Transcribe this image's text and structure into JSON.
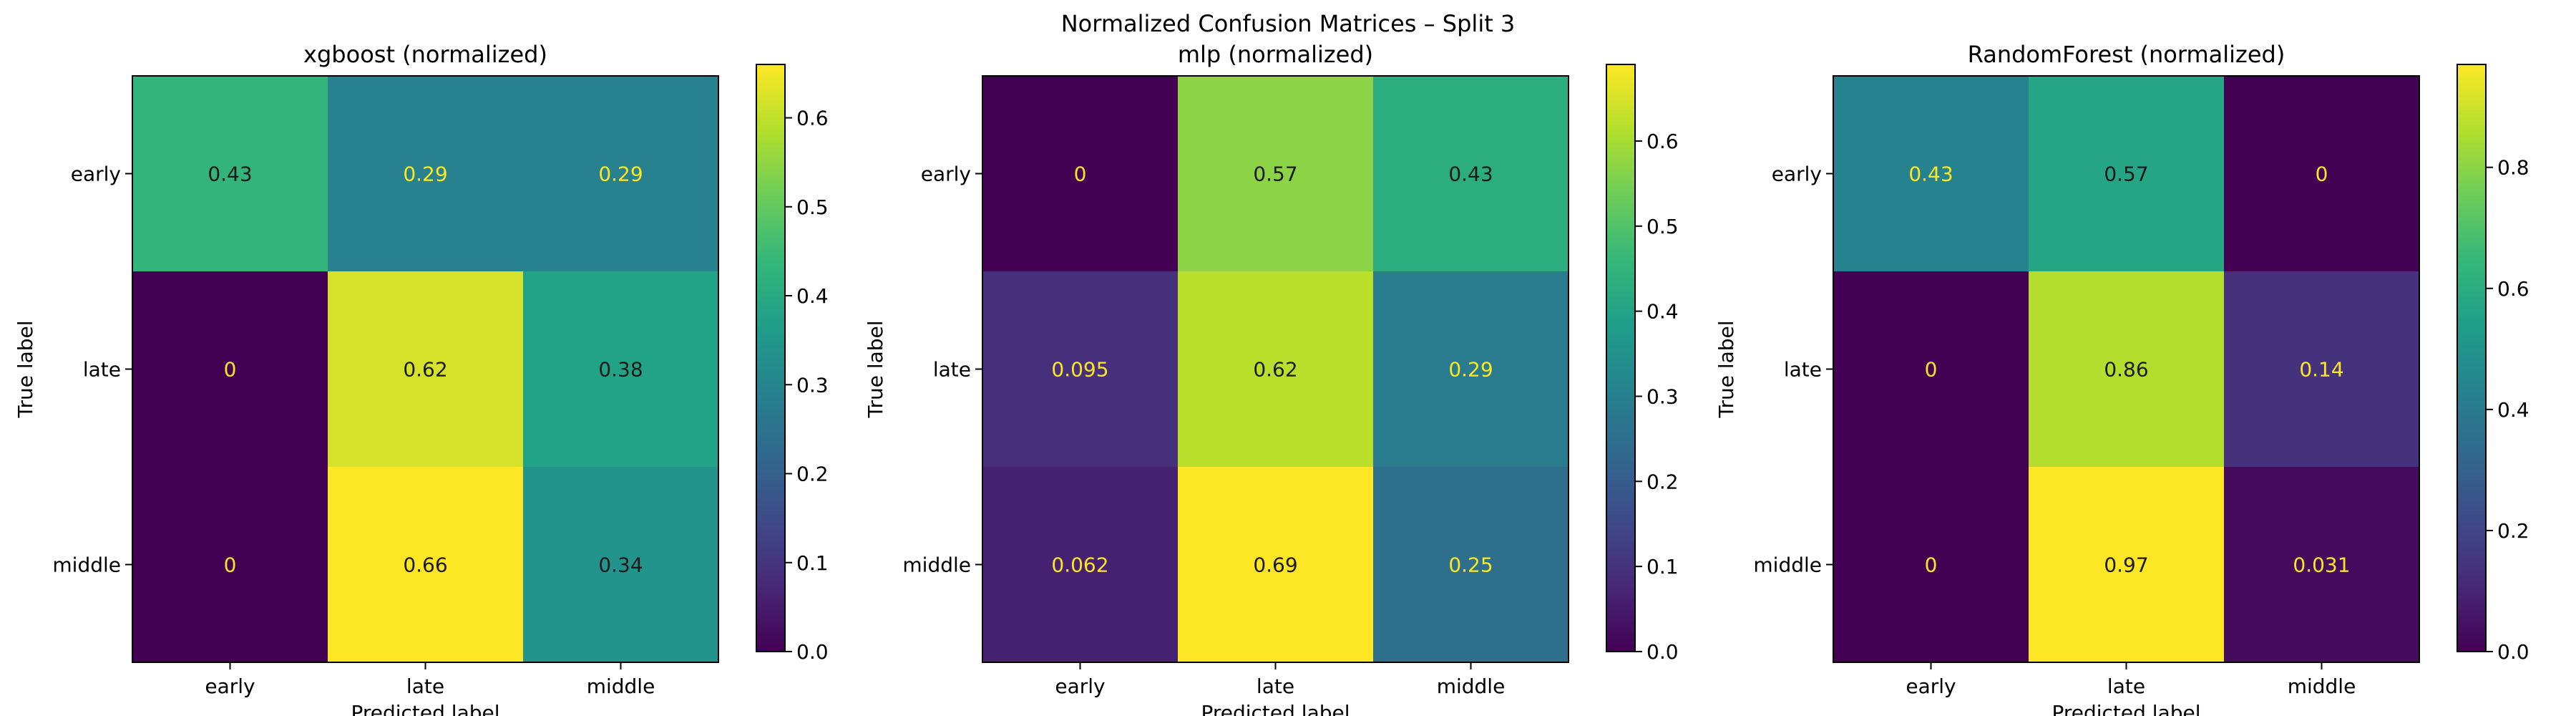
{
  "figure": {
    "suptitle": "Normalized Confusion Matrices – Split 3"
  },
  "chart_data": [
    {
      "type": "heatmap",
      "title": "xgboost (normalized)",
      "xlabel": "Predicted label",
      "ylabel": "True label",
      "rows": [
        "early",
        "late",
        "middle"
      ],
      "cols": [
        "early",
        "late",
        "middle"
      ],
      "values": [
        [
          0.43,
          0.29,
          0.29
        ],
        [
          0,
          0.62,
          0.38
        ],
        [
          0,
          0.66,
          0.34
        ]
      ],
      "labels": [
        [
          "0.43",
          "0.29",
          "0.29"
        ],
        [
          "0",
          "0.62",
          "0.38"
        ],
        [
          "0",
          "0.66",
          "0.34"
        ]
      ],
      "colorbar": {
        "range": [
          0,
          0.66
        ],
        "ticks": [
          "0.0",
          "0.1",
          "0.2",
          "0.3",
          "0.4",
          "0.5",
          "0.6"
        ]
      },
      "colormap": "viridis"
    },
    {
      "type": "heatmap",
      "title": "mlp (normalized)",
      "xlabel": "Predicted label",
      "ylabel": "True label",
      "rows": [
        "early",
        "late",
        "middle"
      ],
      "cols": [
        "early",
        "late",
        "middle"
      ],
      "values": [
        [
          0,
          0.57,
          0.43
        ],
        [
          0.095,
          0.62,
          0.29
        ],
        [
          0.062,
          0.69,
          0.25
        ]
      ],
      "labels": [
        [
          "0",
          "0.57",
          "0.43"
        ],
        [
          "0.095",
          "0.62",
          "0.29"
        ],
        [
          "0.062",
          "0.69",
          "0.25"
        ]
      ],
      "colorbar": {
        "range": [
          0,
          0.69
        ],
        "ticks": [
          "0.0",
          "0.1",
          "0.2",
          "0.3",
          "0.4",
          "0.5",
          "0.6"
        ]
      },
      "colormap": "viridis"
    },
    {
      "type": "heatmap",
      "title": "RandomForest (normalized)",
      "xlabel": "Predicted label",
      "ylabel": "True label",
      "rows": [
        "early",
        "late",
        "middle"
      ],
      "cols": [
        "early",
        "late",
        "middle"
      ],
      "values": [
        [
          0.43,
          0.57,
          0
        ],
        [
          0,
          0.86,
          0.14
        ],
        [
          0,
          0.97,
          0.031
        ]
      ],
      "labels": [
        [
          "0.43",
          "0.57",
          "0"
        ],
        [
          "0",
          "0.86",
          "0.14"
        ],
        [
          "0",
          "0.97",
          "0.031"
        ]
      ],
      "colorbar": {
        "range": [
          0,
          0.97
        ],
        "ticks": [
          "0.0",
          "0.2",
          "0.4",
          "0.6",
          "0.8"
        ]
      },
      "colormap": "viridis"
    }
  ]
}
